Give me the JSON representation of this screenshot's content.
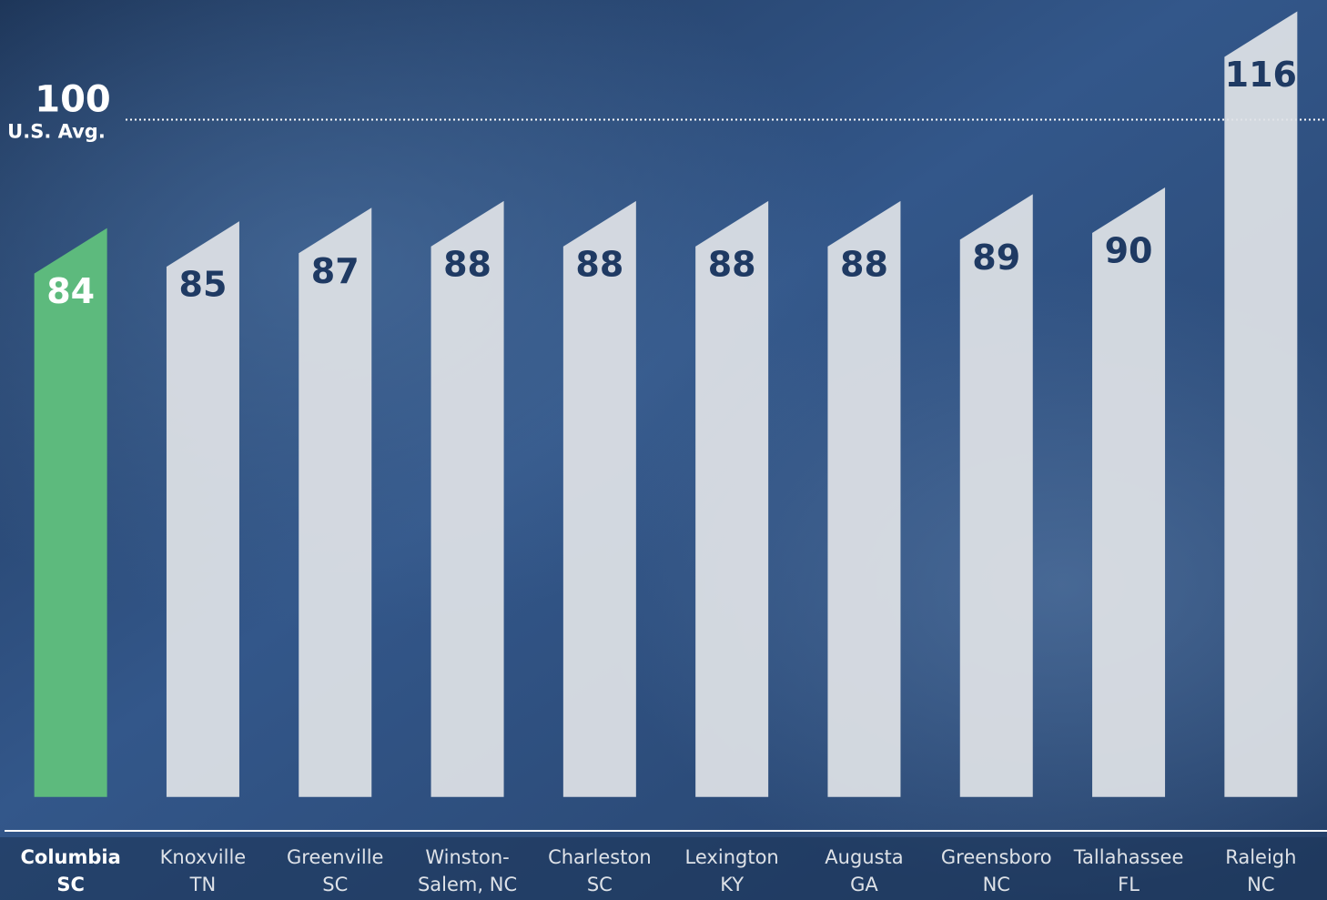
{
  "chart_data": {
    "type": "bar",
    "categories": [
      [
        "Columbia",
        "SC"
      ],
      [
        "Knoxville",
        "TN"
      ],
      [
        "Greenville",
        "SC"
      ],
      [
        "Winston-",
        "Salem, NC"
      ],
      [
        "Charleston",
        "SC"
      ],
      [
        "Lexington",
        "KY"
      ],
      [
        "Augusta",
        "GA"
      ],
      [
        "Greensboro",
        "NC"
      ],
      [
        "Tallahassee",
        "FL"
      ],
      [
        "Raleigh",
        "NC"
      ]
    ],
    "values": [
      84,
      85,
      87,
      88,
      88,
      88,
      88,
      89,
      90,
      116
    ],
    "color": "#dfe2e6",
    "label_color": "#1f3a63",
    "highlight": 0,
    "highlight_color": "#5dba7d",
    "highlight_label_color": "#ffffff",
    "ylim": [
      -5,
      117
    ],
    "reference": {
      "value": 100,
      "label": "U.S. Avg."
    }
  }
}
